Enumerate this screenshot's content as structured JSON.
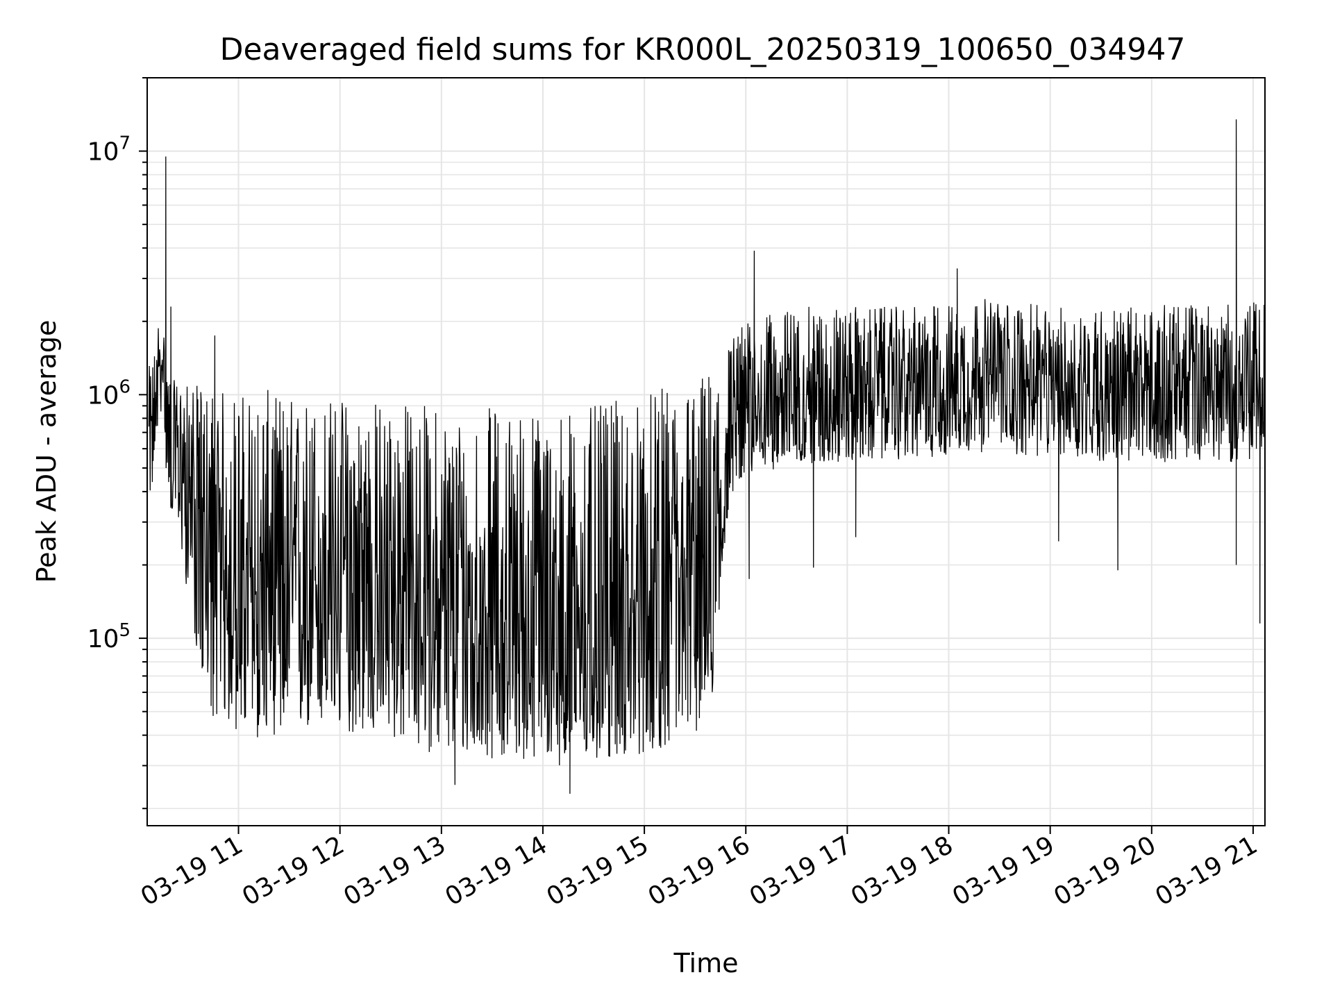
{
  "chart_data": {
    "type": "line",
    "title": "Deaveraged field sums for KR000L_20250319_100650_034947",
    "xlabel": "Time",
    "ylabel": "Peak ADU - average",
    "yscale": "log",
    "grid": true,
    "line_color": "#000000",
    "grid_color": "#e5e5e5",
    "x_ticks": [
      "03-19 11",
      "03-19 12",
      "03-19 13",
      "03-19 14",
      "03-19 15",
      "03-19 16",
      "03-19 17",
      "03-19 18",
      "03-19 19",
      "03-19 20",
      "03-19 21"
    ],
    "y_ticks": [
      {
        "base": "10",
        "exp": "5",
        "value": 100000
      },
      {
        "base": "10",
        "exp": "6",
        "value": 1000000
      },
      {
        "base": "10",
        "exp": "7",
        "value": 10000000
      }
    ],
    "xlim": [
      "2025-03-19 10:06",
      "2025-03-19 21:07"
    ],
    "ylim": [
      17000,
      20000000
    ],
    "series": [
      {
        "x": [
          "2025-03-19 10:07",
          "2025-03-19 10:10",
          "2025-03-19 10:12",
          "2025-03-19 10:15",
          "2025-03-19 10:17",
          "2025-03-19 10:20",
          "2025-03-19 10:25",
          "2025-03-19 10:30",
          "2025-03-19 10:35",
          "2025-03-19 10:40",
          "2025-03-19 10:45",
          "2025-03-19 10:50",
          "2025-03-19 10:55",
          "2025-03-19 11:00",
          "2025-03-19 11:10",
          "2025-03-19 11:20",
          "2025-03-19 11:30",
          "2025-03-19 11:40",
          "2025-03-19 11:50",
          "2025-03-19 12:00",
          "2025-03-19 12:15",
          "2025-03-19 12:30",
          "2025-03-19 12:45",
          "2025-03-19 13:00",
          "2025-03-19 13:15",
          "2025-03-19 13:30",
          "2025-03-19 13:45",
          "2025-03-19 14:00",
          "2025-03-19 14:15",
          "2025-03-19 14:30",
          "2025-03-19 14:45",
          "2025-03-19 15:00",
          "2025-03-19 15:15",
          "2025-03-19 15:30",
          "2025-03-19 15:40",
          "2025-03-19 15:45",
          "2025-03-19 15:50",
          "2025-03-19 15:55",
          "2025-03-19 16:00",
          "2025-03-19 16:10",
          "2025-03-19 16:20",
          "2025-03-19 16:30",
          "2025-03-19 16:45",
          "2025-03-19 17:00",
          "2025-03-19 17:20",
          "2025-03-19 17:40",
          "2025-03-19 18:00",
          "2025-03-19 18:20",
          "2025-03-19 18:40",
          "2025-03-19 19:00",
          "2025-03-19 19:20",
          "2025-03-19 19:40",
          "2025-03-19 20:00",
          "2025-03-19 20:20",
          "2025-03-19 20:40",
          "2025-03-19 20:50",
          "2025-03-19 21:00",
          "2025-03-19 21:07"
        ],
        "y_median": [
          600000,
          800000,
          1200000,
          1400000,
          900000,
          600000,
          550000,
          500000,
          350000,
          250000,
          200000,
          180000,
          170000,
          160000,
          150000,
          160000,
          150000,
          160000,
          170000,
          170000,
          170000,
          160000,
          150000,
          130000,
          120000,
          120000,
          120000,
          110000,
          110000,
          110000,
          120000,
          120000,
          140000,
          160000,
          200000,
          350000,
          600000,
          800000,
          850000,
          900000,
          950000,
          1000000,
          1050000,
          1050000,
          1100000,
          1100000,
          1150000,
          1200000,
          1150000,
          1100000,
          1100000,
          1050000,
          1050000,
          1100000,
          1100000,
          1050000,
          1100000,
          1150000
        ],
        "y_low": [
          380000,
          400000,
          700000,
          900000,
          500000,
          330000,
          250000,
          150000,
          90000,
          60000,
          50000,
          45000,
          42000,
          40000,
          38000,
          40000,
          38000,
          40000,
          42000,
          40000,
          40000,
          38000,
          35000,
          33000,
          32000,
          32000,
          32000,
          30000,
          30000,
          30000,
          32000,
          33000,
          36000,
          40000,
          50000,
          150000,
          350000,
          450000,
          450000,
          480000,
          500000,
          520000,
          520000,
          520000,
          540000,
          540000,
          560000,
          580000,
          560000,
          540000,
          540000,
          520000,
          520000,
          540000,
          540000,
          520000,
          540000,
          560000
        ],
        "y_high": [
          1300000,
          1500000,
          2000000,
          2200000,
          1500000,
          1150000,
          1150000,
          1100000,
          1100000,
          1100000,
          1100000,
          1050000,
          1050000,
          1050000,
          1050000,
          1050000,
          1000000,
          1000000,
          1000000,
          1000000,
          1000000,
          950000,
          950000,
          900000,
          900000,
          900000,
          900000,
          900000,
          900000,
          900000,
          950000,
          1000000,
          1100000,
          1200000,
          1300000,
          1500000,
          1700000,
          1900000,
          2000000,
          2100000,
          2200000,
          2300000,
          2300000,
          2300000,
          2300000,
          2300000,
          2400000,
          2500000,
          2400000,
          2300000,
          2300000,
          2300000,
          2300000,
          2400000,
          2400000,
          2300000,
          2400000,
          2500000
        ],
        "spikes": [
          {
            "x": "2025-03-19 10:17",
            "y": 9500000
          },
          {
            "x": "2025-03-19 10:20",
            "y": 2300000
          },
          {
            "x": "2025-03-19 10:46",
            "y": 1750000
          },
          {
            "x": "2025-03-19 10:45",
            "y": 48000
          },
          {
            "x": "2025-03-19 13:08",
            "y": 25000
          },
          {
            "x": "2025-03-19 14:16",
            "y": 23000
          },
          {
            "x": "2025-03-19 16:05",
            "y": 3900000
          },
          {
            "x": "2025-03-19 16:02",
            "y": 175000
          },
          {
            "x": "2025-03-19 16:40",
            "y": 195000
          },
          {
            "x": "2025-03-19 17:05",
            "y": 260000
          },
          {
            "x": "2025-03-19 18:05",
            "y": 3300000
          },
          {
            "x": "2025-03-19 19:05",
            "y": 250000
          },
          {
            "x": "2025-03-19 19:40",
            "y": 190000
          },
          {
            "x": "2025-03-19 20:50",
            "y": 13500000
          },
          {
            "x": "2025-03-19 20:50",
            "y": 200000
          },
          {
            "x": "2025-03-19 21:04",
            "y": 115000
          }
        ]
      }
    ]
  }
}
